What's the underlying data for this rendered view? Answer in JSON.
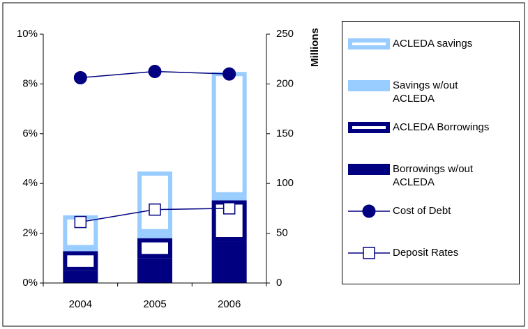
{
  "chart_data": {
    "type": "bar",
    "categories": [
      "2004",
      "2005",
      "2006"
    ],
    "y2_label": "Millions",
    "ylim": [
      0,
      10
    ],
    "yticks": [
      {
        "value": 0,
        "label": "0%"
      },
      {
        "value": 2,
        "label": "2%"
      },
      {
        "value": 4,
        "label": "4%"
      },
      {
        "value": 6,
        "label": "6%"
      },
      {
        "value": 8,
        "label": "8%"
      },
      {
        "value": 10,
        "label": "10%"
      }
    ],
    "y2lim": [
      0,
      250
    ],
    "y2ticks": [
      0,
      50,
      100,
      150,
      200,
      250
    ],
    "series": [
      {
        "name": "ACLEDA savings",
        "type": "bar",
        "axis": "y2",
        "fill": "outline",
        "color": "#99ccff",
        "values": [
          34,
          62,
          125
        ]
      },
      {
        "name": "Savings w/out ACLEDA",
        "type": "bar",
        "axis": "y2",
        "fill": "solid",
        "color": "#99ccff",
        "values": [
          2,
          5,
          4
        ]
      },
      {
        "name": "ACLEDA Borrowings",
        "type": "bar",
        "axis": "y2",
        "fill": "outline",
        "color": "#000080",
        "values": [
          20,
          20,
          41
        ]
      },
      {
        "name": "Borrowings w/out ACLEDA",
        "type": "bar",
        "axis": "y2",
        "fill": "solid",
        "color": "#000080",
        "values": [
          12,
          25,
          42
        ]
      },
      {
        "name": "Cost of Debt",
        "type": "line",
        "marker": "circle",
        "color": "#000080",
        "values": [
          8.25,
          8.5,
          8.4
        ]
      },
      {
        "name": "Deposit Rates",
        "type": "line",
        "marker": "square",
        "color": "#000080",
        "values": [
          2.45,
          2.95,
          3.0
        ]
      }
    ]
  }
}
